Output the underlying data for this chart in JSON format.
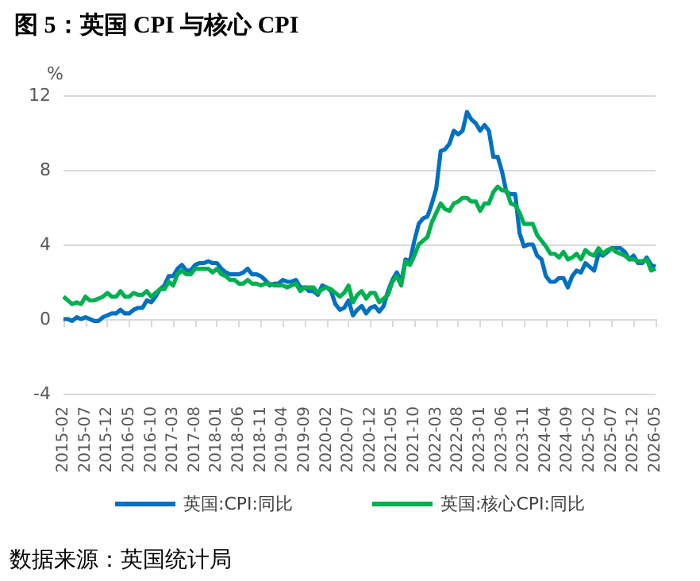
{
  "chart_data": {
    "type": "line",
    "title": "图 5：英国 CPI 与核心 CPI",
    "ylabel": "%",
    "annotations": [
      "数据来源：英国统计局"
    ],
    "categories": [
      "2015-02",
      null,
      null,
      null,
      null,
      "2015-07",
      null,
      null,
      null,
      null,
      "2015-12",
      null,
      null,
      null,
      null,
      "2016-05",
      null,
      null,
      null,
      null,
      "2016-10",
      null,
      null,
      null,
      null,
      "2017-03",
      null,
      null,
      null,
      null,
      "2017-08",
      null,
      null,
      null,
      null,
      "2018-01",
      null,
      null,
      null,
      null,
      "2018-06",
      null,
      null,
      null,
      null,
      "2018-11",
      null,
      null,
      null,
      null,
      "2019-04",
      null,
      null,
      null,
      null,
      "2019-09",
      null,
      null,
      null,
      null,
      "2020-02",
      null,
      null,
      null,
      null,
      "2020-07",
      null,
      null,
      null,
      null,
      "2020-12",
      null,
      null,
      null,
      null,
      "2021-05",
      null,
      null,
      null,
      null,
      "2021-10",
      null,
      null,
      null,
      null,
      "2022-03",
      null,
      null,
      null,
      null,
      "2022-08",
      null,
      null,
      null,
      null,
      "2023-01",
      null,
      null,
      null,
      null,
      "2023-06",
      null,
      null,
      null,
      null,
      "2023-11",
      null,
      null,
      null,
      null,
      "2024-04",
      null,
      null,
      null,
      null,
      "2024-09",
      null,
      null,
      null,
      null,
      "2025-02",
      null,
      null,
      null,
      null,
      "2025-07",
      null,
      null,
      null,
      null,
      "2025-12",
      null,
      null,
      null,
      null,
      "2026-05"
    ],
    "series": [
      {
        "name": "英国:CPI:同比",
        "color": "#0070c0",
        "values": [
          0.0,
          0.0,
          -0.1,
          0.1,
          0.0,
          0.1,
          0.0,
          -0.1,
          -0.1,
          0.1,
          0.2,
          0.3,
          0.3,
          0.5,
          0.3,
          0.3,
          0.5,
          0.6,
          0.6,
          1.0,
          0.9,
          1.2,
          1.6,
          1.8,
          2.3,
          2.3,
          2.7,
          2.9,
          2.6,
          2.6,
          2.9,
          3.0,
          3.0,
          3.1,
          3.0,
          3.0,
          2.7,
          2.5,
          2.4,
          2.4,
          2.4,
          2.5,
          2.7,
          2.4,
          2.4,
          2.3,
          2.1,
          1.8,
          1.9,
          1.9,
          2.1,
          2.0,
          2.0,
          2.1,
          1.7,
          1.7,
          1.5,
          1.5,
          1.3,
          1.8,
          1.7,
          1.5,
          0.8,
          0.5,
          0.6,
          1.0,
          0.2,
          0.5,
          0.7,
          0.3,
          0.6,
          0.7,
          0.4,
          0.7,
          1.5,
          2.1,
          2.5,
          2.0,
          3.2,
          3.1,
          4.2,
          5.1,
          5.4,
          5.5,
          6.2,
          7.0,
          9.0,
          9.1,
          9.4,
          10.1,
          9.9,
          10.1,
          11.1,
          10.7,
          10.5,
          10.1,
          10.4,
          10.1,
          8.7,
          8.7,
          7.9,
          6.8,
          6.7,
          6.7,
          4.6,
          3.9,
          4.0,
          4.0,
          3.4,
          3.2,
          2.3,
          2.0,
          2.0,
          2.2,
          2.2,
          1.7,
          2.3,
          2.6,
          2.5,
          3.0,
          2.8,
          2.6,
          3.5,
          3.4,
          3.6,
          3.8,
          3.8,
          3.8,
          3.6,
          3.2,
          3.4,
          3.0,
          3.0,
          3.3,
          2.9,
          2.8
        ]
      },
      {
        "name": "英国:核心CPI:同比",
        "color": "#00b050",
        "values": [
          1.2,
          1.0,
          0.8,
          0.9,
          0.8,
          1.2,
          1.0,
          1.0,
          1.1,
          1.2,
          1.4,
          1.2,
          1.2,
          1.5,
          1.2,
          1.2,
          1.4,
          1.3,
          1.3,
          1.5,
          1.2,
          1.4,
          1.6,
          1.6,
          2.0,
          1.8,
          2.4,
          2.6,
          2.4,
          2.4,
          2.7,
          2.7,
          2.7,
          2.7,
          2.5,
          2.7,
          2.4,
          2.3,
          2.1,
          2.1,
          1.9,
          1.9,
          2.1,
          1.9,
          1.9,
          1.8,
          1.9,
          1.9,
          1.8,
          1.8,
          1.8,
          1.7,
          1.8,
          1.9,
          1.5,
          1.7,
          1.7,
          1.7,
          1.4,
          1.6,
          1.7,
          1.6,
          1.4,
          1.2,
          1.4,
          1.8,
          0.9,
          1.3,
          1.5,
          1.1,
          1.4,
          1.4,
          0.9,
          1.1,
          1.3,
          2.0,
          2.3,
          1.8,
          3.1,
          2.9,
          3.4,
          4.0,
          4.2,
          4.4,
          5.2,
          5.7,
          6.2,
          5.9,
          5.8,
          6.2,
          6.3,
          6.5,
          6.5,
          6.3,
          6.3,
          5.8,
          6.2,
          6.2,
          6.8,
          7.1,
          6.9,
          6.9,
          6.2,
          6.1,
          5.7,
          5.1,
          5.1,
          5.1,
          4.5,
          4.2,
          3.9,
          3.5,
          3.5,
          3.3,
          3.6,
          3.2,
          3.3,
          3.5,
          3.2,
          3.7,
          3.5,
          3.4,
          3.8,
          3.5,
          3.7,
          3.8,
          3.6,
          3.5,
          3.4,
          3.2,
          3.2,
          3.1,
          3.1,
          3.2,
          2.6,
          2.7
        ]
      }
    ],
    "ylim": [
      -4,
      12
    ],
    "yticks": [
      -4,
      0,
      4,
      8,
      12
    ],
    "grid": "y",
    "legend": "bottom",
    "marker": "none",
    "line_style": "solid"
  }
}
